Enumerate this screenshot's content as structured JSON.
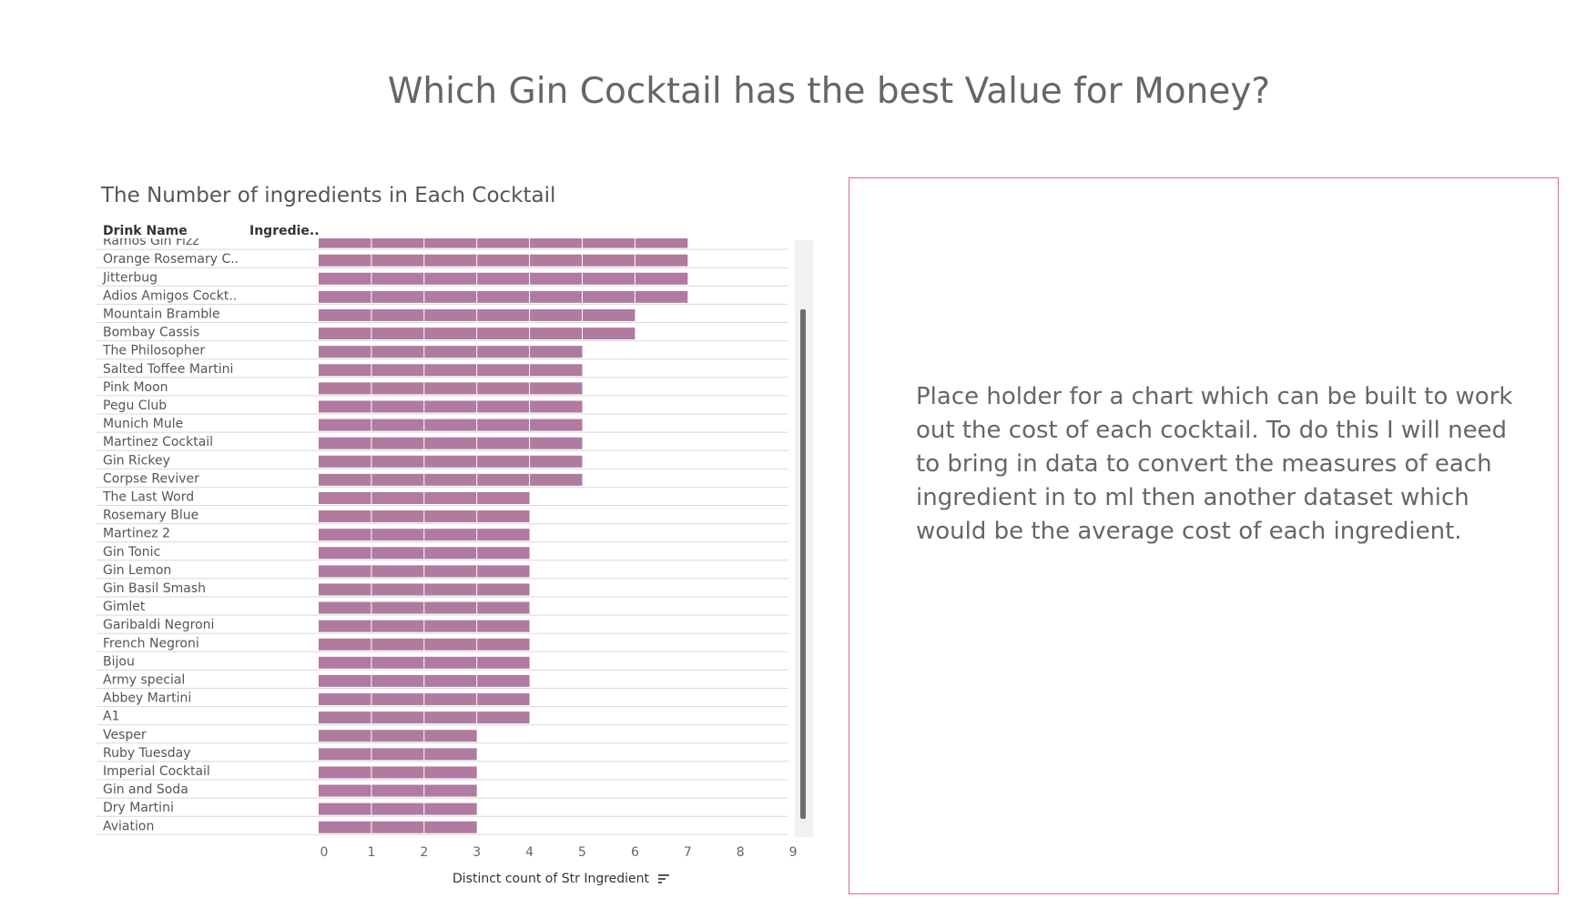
{
  "dashboard": {
    "title": "Which Gin Cocktail has the best Value for Money?"
  },
  "chart_data": {
    "type": "bar",
    "title": "The Number of ingredients in Each Cocktail",
    "column_headers": [
      "Drink Name",
      "Ingredie.."
    ],
    "categories": [
      "Ramos Gin Fizz",
      "Orange Rosemary C..",
      "Jitterbug",
      "Adios Amigos Cockt..",
      "Mountain Bramble",
      "Bombay Cassis",
      "The Philosopher",
      "Salted Toffee Martini",
      "Pink Moon",
      "Pegu Club",
      "Munich Mule",
      "Martinez Cocktail",
      "Gin Rickey",
      "Corpse Reviver",
      "The Last Word",
      "Rosemary Blue",
      "Martinez 2",
      "Gin Tonic",
      "Gin Lemon",
      "Gin Basil Smash",
      "Gimlet",
      "Garibaldi Negroni",
      "French Negroni",
      "Bijou",
      "Army special",
      "Abbey Martini",
      "A1",
      "Vesper",
      "Ruby Tuesday",
      "Imperial Cocktail",
      "Gin and Soda",
      "Dry Martini",
      "Aviation"
    ],
    "values": [
      7,
      7,
      7,
      7,
      6,
      6,
      5,
      5,
      5,
      5,
      5,
      5,
      5,
      5,
      4,
      4,
      4,
      4,
      4,
      4,
      4,
      4,
      4,
      4,
      4,
      4,
      4,
      3,
      3,
      3,
      3,
      3,
      3
    ],
    "xlabel": "Distinct count of Str Ingredient",
    "ylabel": "Drink Name",
    "xlim": [
      0,
      9
    ],
    "xticks": [
      "0",
      "1",
      "2",
      "3",
      "4",
      "5",
      "6",
      "7",
      "8",
      "9"
    ],
    "bar_color": "#b07aa1",
    "grid": true,
    "sorted": "descending"
  },
  "placeholder": {
    "text": "Place holder for a chart which can be built to work out the cost of each cocktail. To do this I will need to bring in data to convert the measures of each ingredient in to ml then another dataset which would be the average cost of each ingredient.",
    "border_color": "#e0678f"
  }
}
